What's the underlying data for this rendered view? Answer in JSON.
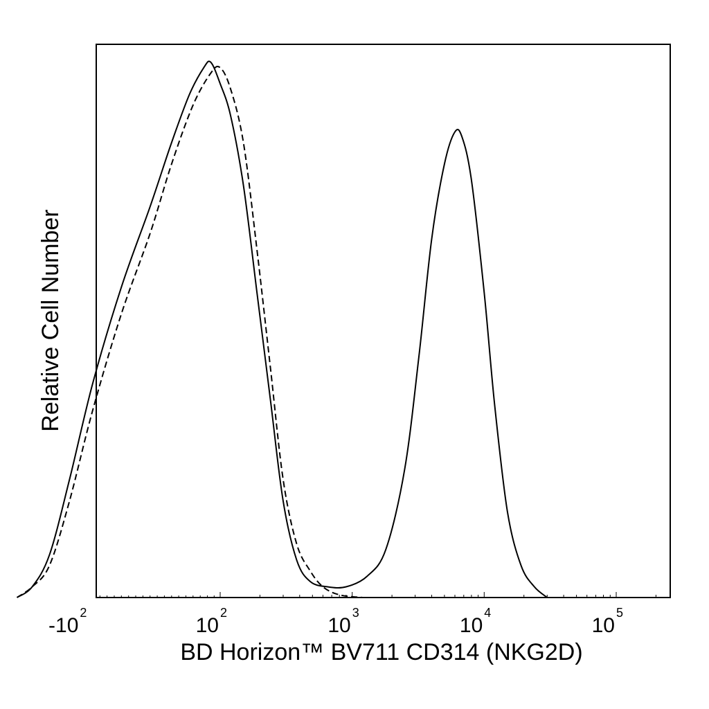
{
  "chart_data": {
    "type": "line",
    "title": "",
    "xlabel": "BD Horizon™ BV711 CD314 (NKG2D)",
    "ylabel": "Relative Cell Number",
    "x_scale": "biexponential",
    "xlim": [
      -400,
      250000
    ],
    "ylim": [
      0,
      1.0
    ],
    "grid": false,
    "legend": "none",
    "x_ticks": [
      {
        "value": -100,
        "base": "-10",
        "exp": "2"
      },
      {
        "value": 100,
        "base": "10",
        "exp": "2"
      },
      {
        "value": 1000,
        "base": "10",
        "exp": "3"
      },
      {
        "value": 10000,
        "base": "10",
        "exp": "4"
      },
      {
        "value": 100000,
        "base": "10",
        "exp": "5"
      }
    ],
    "series": [
      {
        "style": "solid",
        "color": "#000000",
        "points": [
          [
            -300,
            0.0
          ],
          [
            -230,
            0.02
          ],
          [
            -170,
            0.08
          ],
          [
            -120,
            0.22
          ],
          [
            -80,
            0.4
          ],
          [
            -40,
            0.58
          ],
          [
            0,
            0.73
          ],
          [
            30,
            0.85
          ],
          [
            55,
            0.94
          ],
          [
            75,
            0.99
          ],
          [
            85,
            1.0
          ],
          [
            100,
            0.96
          ],
          [
            120,
            0.9
          ],
          [
            150,
            0.77
          ],
          [
            190,
            0.57
          ],
          [
            240,
            0.37
          ],
          [
            300,
            0.18
          ],
          [
            380,
            0.07
          ],
          [
            480,
            0.03
          ],
          [
            650,
            0.02
          ],
          [
            900,
            0.02
          ],
          [
            1300,
            0.04
          ],
          [
            1800,
            0.09
          ],
          [
            2500,
            0.24
          ],
          [
            3200,
            0.45
          ],
          [
            4000,
            0.67
          ],
          [
            5000,
            0.81
          ],
          [
            6000,
            0.87
          ],
          [
            6800,
            0.86
          ],
          [
            8000,
            0.78
          ],
          [
            10000,
            0.57
          ],
          [
            12000,
            0.36
          ],
          [
            15000,
            0.16
          ],
          [
            19000,
            0.06
          ],
          [
            24000,
            0.02
          ],
          [
            30000,
            0.0
          ]
        ]
      },
      {
        "style": "dashed",
        "color": "#000000",
        "points": [
          [
            -300,
            0.0
          ],
          [
            -230,
            0.02
          ],
          [
            -170,
            0.06
          ],
          [
            -120,
            0.18
          ],
          [
            -80,
            0.35
          ],
          [
            -40,
            0.53
          ],
          [
            0,
            0.68
          ],
          [
            30,
            0.81
          ],
          [
            60,
            0.92
          ],
          [
            85,
            0.98
          ],
          [
            100,
            0.99
          ],
          [
            120,
            0.95
          ],
          [
            150,
            0.85
          ],
          [
            190,
            0.65
          ],
          [
            240,
            0.43
          ],
          [
            300,
            0.22
          ],
          [
            380,
            0.1
          ],
          [
            480,
            0.05
          ],
          [
            600,
            0.02
          ],
          [
            800,
            0.005
          ],
          [
            1200,
            0.0
          ]
        ]
      }
    ]
  }
}
